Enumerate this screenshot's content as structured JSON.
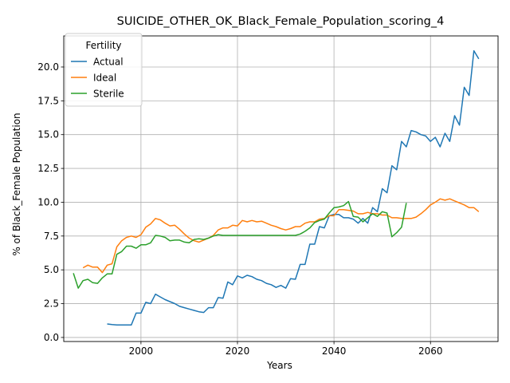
{
  "chart_data": {
    "type": "line",
    "title": "SUICIDE_OTHER_OK_Black_Female_Population_scoring_4",
    "xlabel": "Years",
    "ylabel": "% of Black_Female Population",
    "xlim": [
      1984,
      2074
    ],
    "ylim": [
      -0.3,
      22.3
    ],
    "x_ticks": [
      2000,
      2020,
      2040,
      2060
    ],
    "y_ticks": [
      0.0,
      2.5,
      5.0,
      7.5,
      10.0,
      12.5,
      15.0,
      17.5,
      20.0
    ],
    "y_tick_labels": [
      "0.0",
      "2.5",
      "5.0",
      "7.5",
      "10.0",
      "12.5",
      "15.0",
      "17.5",
      "20.0"
    ],
    "grid": true,
    "legend": {
      "title": "Fertility",
      "placement": "top-left"
    },
    "series": [
      {
        "name": "Actual",
        "color": "#1f77b4",
        "x": [
          1993,
          1994,
          1995,
          1996,
          1997,
          1998,
          1999,
          2000,
          2001,
          2002,
          2003,
          2004,
          2005,
          2006,
          2007,
          2008,
          2009,
          2010,
          2011,
          2012,
          2013,
          2014,
          2015,
          2016,
          2017,
          2018,
          2019,
          2020,
          2021,
          2022,
          2023,
          2024,
          2025,
          2026,
          2027,
          2028,
          2029,
          2030,
          2031,
          2032,
          2033,
          2034,
          2035,
          2036,
          2037,
          2038,
          2039,
          2040,
          2041,
          2042,
          2043,
          2044,
          2045,
          2046,
          2047,
          2048,
          2049,
          2050,
          2051,
          2052,
          2053,
          2054,
          2055,
          2056,
          2057,
          2058,
          2059,
          2060,
          2061,
          2062,
          2063,
          2064,
          2065,
          2066,
          2067,
          2068,
          2069,
          2070
        ],
        "values": [
          1.0,
          0.95,
          0.93,
          0.93,
          0.93,
          0.93,
          1.8,
          1.8,
          2.6,
          2.5,
          3.2,
          3.0,
          2.8,
          2.65,
          2.5,
          2.3,
          2.2,
          2.1,
          2.0,
          1.9,
          1.85,
          2.2,
          2.2,
          2.95,
          2.9,
          4.1,
          3.9,
          4.55,
          4.4,
          4.6,
          4.5,
          4.3,
          4.2,
          4.0,
          3.9,
          3.7,
          3.85,
          3.65,
          4.35,
          4.3,
          5.4,
          5.4,
          6.9,
          6.9,
          8.2,
          8.1,
          9.0,
          9.1,
          9.1,
          8.85,
          8.85,
          8.75,
          8.45,
          8.8,
          8.45,
          9.6,
          9.3,
          11.0,
          10.7,
          12.7,
          12.4,
          14.5,
          14.1,
          15.3,
          15.2,
          15.0,
          14.9,
          14.5,
          14.8,
          14.1,
          15.1,
          14.5,
          16.4,
          15.7,
          18.5,
          17.9,
          21.2,
          20.6
        ]
      },
      {
        "name": "Ideal",
        "color": "#ff7f0e",
        "x": [
          1988,
          1989,
          1990,
          1991,
          1992,
          1993,
          1994,
          1995,
          1996,
          1997,
          1998,
          1999,
          2000,
          2001,
          2002,
          2003,
          2004,
          2005,
          2006,
          2007,
          2008,
          2009,
          2010,
          2011,
          2012,
          2013,
          2014,
          2015,
          2016,
          2017,
          2018,
          2019,
          2020,
          2021,
          2022,
          2023,
          2024,
          2025,
          2026,
          2027,
          2028,
          2029,
          2030,
          2031,
          2032,
          2033,
          2034,
          2035,
          2036,
          2037,
          2038,
          2039,
          2040,
          2041,
          2042,
          2043,
          2044,
          2045,
          2046,
          2047,
          2048,
          2049,
          2050,
          2051,
          2052,
          2053,
          2054,
          2055,
          2056,
          2057,
          2058,
          2059,
          2060,
          2061,
          2062,
          2063,
          2064,
          2065,
          2066,
          2067,
          2068,
          2069,
          2070
        ],
        "values": [
          5.15,
          5.35,
          5.2,
          5.2,
          4.8,
          5.35,
          5.45,
          6.7,
          7.15,
          7.4,
          7.5,
          7.4,
          7.6,
          8.15,
          8.4,
          8.8,
          8.7,
          8.45,
          8.25,
          8.3,
          8.0,
          7.65,
          7.35,
          7.15,
          7.05,
          7.2,
          7.35,
          7.55,
          7.95,
          8.1,
          8.1,
          8.3,
          8.25,
          8.65,
          8.55,
          8.65,
          8.55,
          8.6,
          8.45,
          8.3,
          8.2,
          8.05,
          7.95,
          8.05,
          8.2,
          8.2,
          8.45,
          8.55,
          8.55,
          8.75,
          8.8,
          9.0,
          9.0,
          9.45,
          9.45,
          9.4,
          9.35,
          9.15,
          9.15,
          9.25,
          9.15,
          9.15,
          9.05,
          9.05,
          8.85,
          8.85,
          8.8,
          8.8,
          8.8,
          8.9,
          9.15,
          9.45,
          9.8,
          10.0,
          10.25,
          10.15,
          10.25,
          10.1,
          9.95,
          9.8,
          9.6,
          9.6,
          9.3
        ]
      },
      {
        "name": "Sterile",
        "color": "#2ca02c",
        "x": [
          1986,
          1987,
          1988,
          1989,
          1990,
          1991,
          1992,
          1993,
          1994,
          1995,
          1996,
          1997,
          1998,
          1999,
          2000,
          2001,
          2002,
          2003,
          2004,
          2005,
          2006,
          2007,
          2008,
          2009,
          2010,
          2011,
          2012,
          2013,
          2014,
          2015,
          2016,
          2017,
          2018,
          2019,
          2020,
          2021,
          2022,
          2023,
          2024,
          2025,
          2026,
          2027,
          2028,
          2029,
          2030,
          2031,
          2032,
          2033,
          2034,
          2035,
          2036,
          2037,
          2038,
          2039,
          2040,
          2041,
          2042,
          2043,
          2044,
          2045,
          2046,
          2047,
          2048,
          2049,
          2050,
          2051,
          2052,
          2053,
          2054,
          2055
        ],
        "values": [
          4.75,
          3.65,
          4.2,
          4.3,
          4.05,
          4.0,
          4.4,
          4.7,
          4.7,
          6.15,
          6.35,
          6.75,
          6.75,
          6.6,
          6.85,
          6.85,
          7.0,
          7.55,
          7.5,
          7.4,
          7.15,
          7.2,
          7.2,
          7.05,
          7.0,
          7.25,
          7.3,
          7.25,
          7.35,
          7.5,
          7.6,
          7.55,
          7.55,
          7.55,
          7.55,
          7.55,
          7.55,
          7.55,
          7.55,
          7.55,
          7.55,
          7.55,
          7.55,
          7.55,
          7.55,
          7.55,
          7.55,
          7.65,
          7.85,
          8.1,
          8.5,
          8.65,
          8.75,
          9.2,
          9.6,
          9.65,
          9.75,
          10.05,
          8.95,
          8.9,
          8.55,
          8.85,
          9.15,
          8.95,
          9.3,
          9.2,
          7.45,
          7.75,
          8.15,
          9.95
        ]
      }
    ]
  }
}
